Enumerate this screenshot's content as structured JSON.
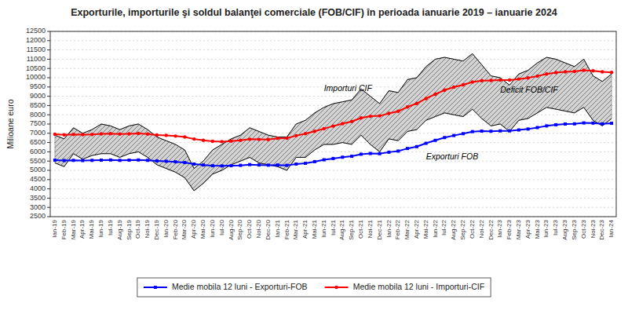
{
  "chart_data": {
    "type": "line",
    "title": "Exporturile, importurile şi soldul balanţei comerciale (FOB/CIF) în perioada ianuarie 2019 – ianuarie 2024",
    "y_label": "Milioane euro",
    "categories": [
      "Ian-19",
      "Feb-19",
      "Mar-19",
      "Apr-19",
      "Mai-19",
      "Iun-19",
      "Iul-19",
      "Aug-19",
      "Sep-19",
      "Oct-19",
      "Noi-19",
      "Dec-19",
      "Ian-20",
      "Feb-20",
      "Mar-20",
      "Apr-20",
      "Mai-20",
      "Iun-20",
      "Iul-20",
      "Aug-20",
      "Sep-20",
      "Oct-20",
      "Noi-20",
      "Dec-20",
      "Ian-21",
      "Feb-21",
      "Mar-21",
      "Apr-21",
      "Mai-21",
      "Iun-21",
      "Iul-21",
      "Aug-21",
      "Sep-21",
      "Oct-21",
      "Noi-21",
      "Dec-21",
      "Ian-22",
      "Feb-22",
      "Mar-22",
      "Apr-22",
      "Mai-22",
      "Iun-22",
      "Iul-22",
      "Aug-22",
      "Sep-22",
      "Oct-22",
      "Noi-22",
      "Dec-22",
      "Ian-23",
      "Feb-23",
      "Mar-23",
      "Apr-23",
      "Mai-23",
      "Iun-23",
      "Iul-23",
      "Aug-23",
      "Sep-23",
      "Oct-23",
      "Noi-23",
      "Dec-23",
      "Ian-24"
    ],
    "series": [
      {
        "type": "area",
        "color": "#000000",
        "values": [
          5400,
          5200,
          5900,
          5600,
          5800,
          5900,
          5900,
          5700,
          5900,
          6000,
          5700,
          5300,
          5100,
          4900,
          4600,
          3900,
          4300,
          4800,
          5000,
          5300,
          5500,
          5700,
          5400,
          5300,
          5200,
          5000,
          5700,
          5700,
          6100,
          6400,
          6400,
          6500,
          6400,
          6900,
          6400,
          6000,
          6700,
          6600,
          7100,
          7200,
          7700,
          7900,
          8100,
          8000,
          7900,
          8300,
          7800,
          7400,
          7500,
          7100,
          7700,
          7800,
          8100,
          8400,
          8300,
          8200,
          8100,
          8400,
          7700,
          7400,
          7800
        ]
      },
      {
        "type": "area",
        "color": "#000000",
        "values": [
          6900,
          6700,
          7300,
          7000,
          7200,
          7500,
          7400,
          7200,
          7400,
          7500,
          7200,
          6800,
          6600,
          6400,
          6100,
          5100,
          5500,
          6100,
          6400,
          6700,
          6900,
          7300,
          7100,
          6900,
          6800,
          6800,
          7500,
          7700,
          8100,
          8400,
          8600,
          8700,
          8800,
          9400,
          9000,
          8600,
          9300,
          9200,
          9900,
          10000,
          10600,
          11000,
          11100,
          11000,
          10900,
          11300,
          10700,
          10100,
          10000,
          9600,
          10200,
          10400,
          10800,
          11100,
          11000,
          10800,
          10600,
          11000,
          10100,
          9800,
          10200
        ]
      },
      {
        "name": "Medie mobila 12 luni - Exporturi-FOB",
        "type": "line",
        "color": "#0000FF",
        "marker": "square",
        "values": [
          5550,
          5530,
          5540,
          5530,
          5540,
          5550,
          5560,
          5540,
          5550,
          5560,
          5540,
          5510,
          5490,
          5460,
          5420,
          5340,
          5290,
          5250,
          5240,
          5250,
          5270,
          5310,
          5290,
          5280,
          5290,
          5270,
          5340,
          5380,
          5470,
          5570,
          5640,
          5710,
          5760,
          5870,
          5910,
          5900,
          5980,
          6040,
          6180,
          6280,
          6460,
          6620,
          6770,
          6880,
          6980,
          7090,
          7120,
          7110,
          7130,
          7130,
          7180,
          7230,
          7310,
          7400,
          7460,
          7500,
          7510,
          7560,
          7550,
          7510,
          7540
        ]
      },
      {
        "name": "Medie mobila 12 luni - Importuri-CIF",
        "type": "line",
        "color": "#FF0000",
        "marker": "circle",
        "values": [
          6950,
          6920,
          6940,
          6930,
          6940,
          6970,
          6980,
          6960,
          6970,
          6990,
          6960,
          6910,
          6890,
          6850,
          6800,
          6690,
          6620,
          6570,
          6550,
          6580,
          6620,
          6680,
          6670,
          6660,
          6730,
          6740,
          6870,
          6980,
          7110,
          7250,
          7390,
          7520,
          7640,
          7830,
          7920,
          7940,
          8070,
          8190,
          8420,
          8610,
          8880,
          9110,
          9330,
          9490,
          9620,
          9770,
          9840,
          9850,
          9870,
          9870,
          9930,
          9990,
          10090,
          10200,
          10280,
          10320,
          10340,
          10400,
          10370,
          10320,
          10290
        ]
      }
    ],
    "annotations": [
      {
        "text": "Importuri CIF",
        "x": "Iun-21",
        "y": 9300
      },
      {
        "text": "Exporturi FOB",
        "x": "Mai-22",
        "y": 5600
      },
      {
        "text": "Deficit FOB/CIF",
        "x": "Ian-23",
        "y": 9200
      }
    ],
    "ylim": [
      2500,
      12500
    ],
    "yticks": [
      2500,
      3000,
      3500,
      4000,
      4500,
      5000,
      5500,
      6000,
      6500,
      7000,
      7500,
      8000,
      8500,
      9000,
      9500,
      10000,
      10500,
      11000,
      11500,
      12000,
      12500
    ],
    "grid": true,
    "legend": "bottom"
  }
}
